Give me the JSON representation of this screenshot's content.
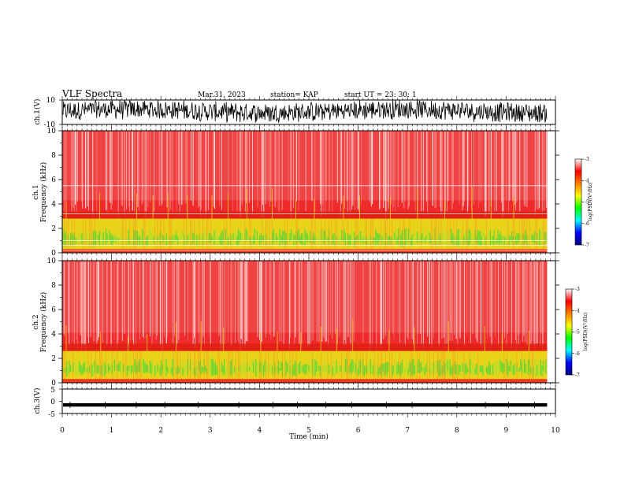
{
  "header": {
    "title": "VLF Spectra",
    "date": "Mar.31, 2023",
    "station": "station= KAP",
    "start": "start  UT =   23: 30: 1"
  },
  "chart_data": [
    {
      "type": "line",
      "ylabel": "ch.1(V)",
      "yticks": [
        "10",
        "-10"
      ],
      "ylim": [
        -10,
        10
      ],
      "series_color": "#000000",
      "note": "dense waveform filling roughly -8 to +10 V"
    },
    {
      "type": "heatmap",
      "ylabel_channel": "ch.1",
      "ylabel": "Frequency  (kHz)",
      "yticks": [
        "0",
        "2",
        "4",
        "6",
        "8",
        "10"
      ],
      "ylim": [
        0,
        10
      ],
      "colorbar": {
        "label": "log(PSD)(V²/Hz)",
        "ticks": [
          "-3",
          "-4",
          "-5",
          "-6",
          "-7"
        ],
        "range": [
          -7,
          -3
        ],
        "colors": [
          "#000080",
          "#0000ff",
          "#00ffff",
          "#00ff00",
          "#ffff00",
          "#ff8000",
          "#ff0000",
          "#ffffff"
        ]
      },
      "bands_khz": {
        "strong_yellow_green": [
          0.3,
          2.8
        ],
        "red_background": [
          2.8,
          10
        ]
      },
      "horizontal_lines_khz": [
        5.5,
        3.2,
        0.2,
        0.6,
        1.0
      ]
    },
    {
      "type": "heatmap",
      "ylabel_channel": "ch.2",
      "ylabel": "Frequency  (kHz)",
      "yticks": [
        "0",
        "2",
        "4",
        "6",
        "8",
        "10"
      ],
      "ylim": [
        0,
        10
      ],
      "colorbar": {
        "label": "log(PSD)(V²/Hz)",
        "ticks": [
          "-3",
          "-4",
          "-5",
          "-6",
          "-7"
        ],
        "range": [
          -7,
          -3
        ]
      },
      "bands_khz": {
        "strong_yellow_green": [
          0.3,
          2.6
        ],
        "red_background": [
          2.6,
          10
        ]
      }
    },
    {
      "type": "line",
      "ylabel": "ch.3(V)",
      "yticks": [
        "5",
        "0",
        "-5"
      ],
      "ylim": [
        -5,
        5
      ],
      "level": -1.5,
      "series_color": "#000000"
    }
  ],
  "xaxis": {
    "label": "Time  (min)",
    "ticks": [
      "0",
      "1",
      "2",
      "3",
      "4",
      "5",
      "6",
      "7",
      "8",
      "9",
      "10"
    ],
    "range": [
      0,
      10
    ],
    "data_end": 9.83
  }
}
